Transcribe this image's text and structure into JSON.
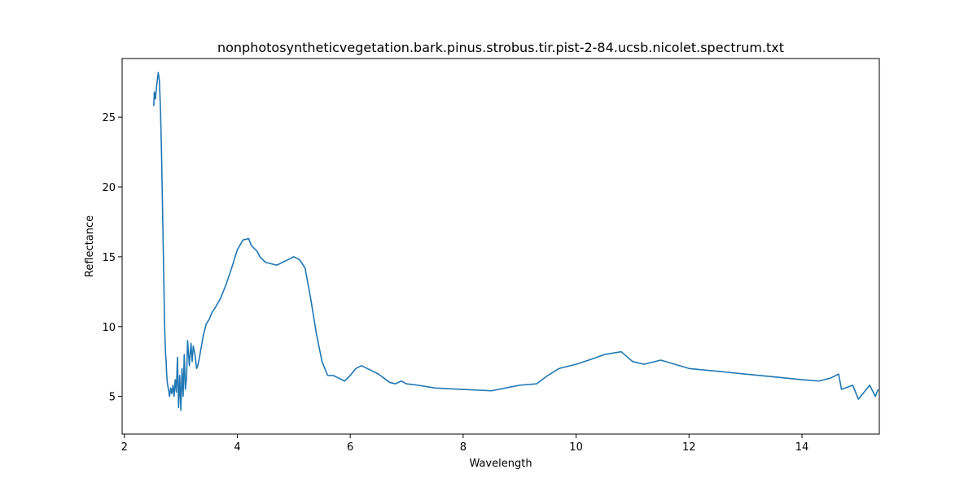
{
  "chart_data": {
    "type": "line",
    "title": "nonphotosyntheticvegetation.bark.pinus.strobus.tir.pist-2-84.ucsb.nicolet.spectrum.txt",
    "xlabel": "Wavelength",
    "ylabel": "Reflectance",
    "xlim": [
      1.96,
      15.37
    ],
    "ylim": [
      2.3,
      29.2
    ],
    "x_ticks": [
      2,
      4,
      6,
      8,
      10,
      12,
      14
    ],
    "y_ticks": [
      5,
      10,
      15,
      20,
      25
    ],
    "x_tick_labels": [
      "2",
      "4",
      "6",
      "8",
      "10",
      "12",
      "14"
    ],
    "y_tick_labels": [
      "5",
      "10",
      "15",
      "20",
      "25"
    ],
    "grid": false,
    "legend": "none",
    "series": [
      {
        "color": "#1f77b4",
        "x": [
          2.52,
          2.53,
          2.55,
          2.57,
          2.6,
          2.62,
          2.64,
          2.66,
          2.68,
          2.7,
          2.71,
          2.72,
          2.73,
          2.74,
          2.75,
          2.76,
          2.78,
          2.8,
          2.82,
          2.84,
          2.86,
          2.88,
          2.9,
          2.92,
          2.94,
          2.96,
          2.98,
          3.0,
          3.02,
          3.04,
          3.06,
          3.08,
          3.1,
          3.12,
          3.15,
          3.18,
          3.2,
          3.22,
          3.25,
          3.28,
          3.3,
          3.33,
          3.36,
          3.4,
          3.45,
          3.5,
          3.55,
          3.6,
          3.7,
          3.8,
          3.9,
          4.0,
          4.1,
          4.2,
          4.25,
          4.3,
          4.35,
          4.4,
          4.5,
          4.6,
          4.7,
          4.8,
          4.9,
          5.0,
          5.1,
          5.2,
          5.3,
          5.4,
          5.5,
          5.6,
          5.7,
          5.75,
          5.8,
          5.9,
          6.0,
          6.1,
          6.2,
          6.3,
          6.4,
          6.5,
          6.6,
          6.7,
          6.8,
          6.9,
          7.0,
          7.2,
          7.5,
          8.0,
          8.5,
          9.0,
          9.3,
          9.5,
          9.7,
          10.0,
          10.3,
          10.5,
          10.8,
          11.0,
          11.2,
          11.5,
          12.0,
          12.5,
          13.0,
          13.5,
          14.0,
          14.3,
          14.5,
          14.65,
          14.7,
          14.9,
          15.0,
          15.1,
          15.2,
          15.3,
          15.35
        ],
        "y": [
          25.8,
          26.8,
          26.3,
          27.2,
          28.2,
          27.6,
          25.5,
          22.0,
          17.5,
          13.0,
          10.5,
          9.0,
          8.0,
          7.5,
          6.5,
          6.0,
          5.5,
          5.0,
          5.6,
          5.2,
          5.8,
          5.0,
          6.2,
          5.3,
          7.8,
          4.2,
          6.5,
          4.0,
          7.0,
          5.0,
          8.0,
          5.5,
          6.3,
          9.0,
          7.2,
          8.8,
          7.5,
          8.6,
          8.0,
          7.0,
          7.2,
          7.8,
          8.5,
          9.4,
          10.2,
          10.5,
          11.0,
          11.3,
          12.0,
          13.0,
          14.2,
          15.5,
          16.2,
          16.3,
          15.8,
          15.6,
          15.4,
          15.0,
          14.6,
          14.5,
          14.4,
          14.6,
          14.8,
          15.0,
          14.8,
          14.2,
          12.0,
          9.5,
          7.5,
          6.5,
          6.5,
          6.4,
          6.3,
          6.1,
          6.5,
          7.0,
          7.2,
          7.0,
          6.8,
          6.6,
          6.3,
          6.0,
          5.9,
          6.1,
          5.9,
          5.8,
          5.6,
          5.5,
          5.4,
          5.8,
          5.9,
          6.5,
          7.0,
          7.3,
          7.7,
          8.0,
          8.2,
          7.5,
          7.3,
          7.6,
          7.0,
          6.8,
          6.6,
          6.4,
          6.2,
          6.1,
          6.3,
          6.6,
          5.5,
          5.8,
          4.8,
          5.3,
          5.8,
          5.0,
          5.5
        ]
      }
    ]
  }
}
